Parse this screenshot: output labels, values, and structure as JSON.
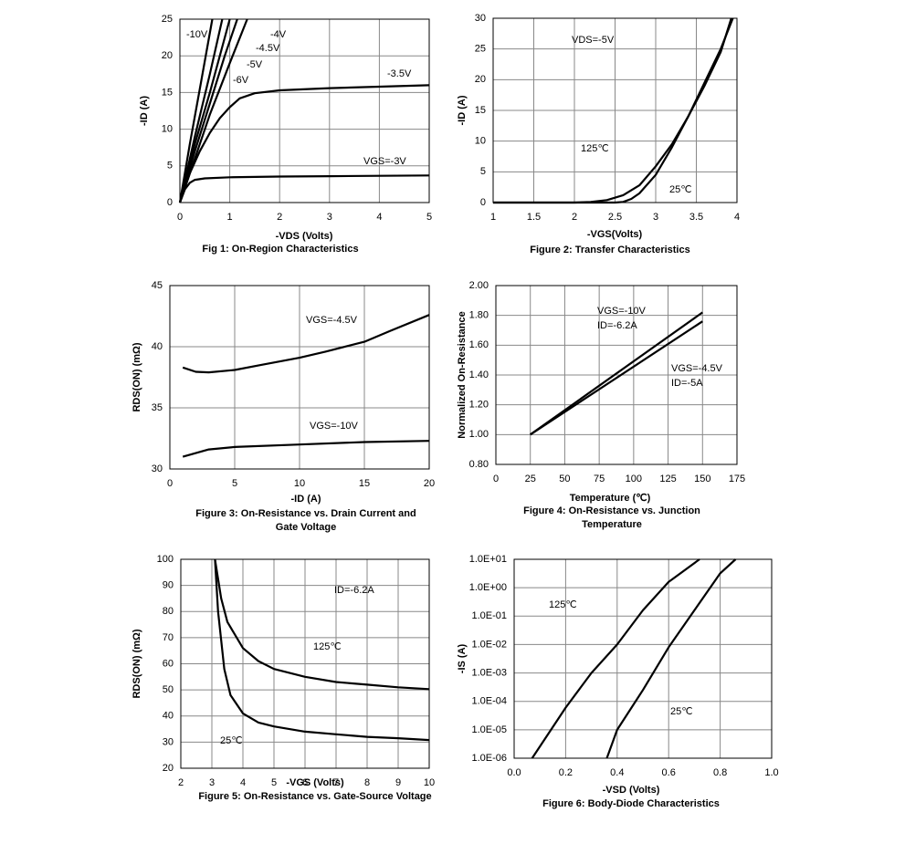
{
  "chart_data": [
    {
      "type": "line",
      "title": "Fig 1: On-Region Characteristics",
      "xlabel": "-VDS (Volts)",
      "ylabel": "-ID (A)",
      "xlim": [
        0,
        5
      ],
      "ylim": [
        0,
        25
      ],
      "xticks": [
        0,
        1,
        2,
        3,
        4,
        5
      ],
      "yticks": [
        0,
        5,
        10,
        15,
        20,
        25
      ],
      "grid": true,
      "series": [
        {
          "name": "VGS=-3V",
          "color": "#000000",
          "x": [
            0,
            0.1,
            0.2,
            0.3,
            0.5,
            1,
            2,
            3,
            4,
            5
          ],
          "values": [
            0,
            1.8,
            2.7,
            3.1,
            3.3,
            3.45,
            3.55,
            3.6,
            3.65,
            3.7
          ]
        },
        {
          "name": "-3.5V",
          "color": "#000000",
          "x": [
            0,
            0.2,
            0.4,
            0.6,
            0.8,
            1,
            1.2,
            1.5,
            2,
            3,
            4,
            5
          ],
          "values": [
            0,
            4,
            7,
            9.5,
            11.5,
            13,
            14.2,
            14.9,
            15.3,
            15.6,
            15.8,
            16
          ]
        },
        {
          "name": "-4V",
          "color": "#000000",
          "x": [
            0,
            0.3,
            0.6,
            1,
            1.35
          ],
          "values": [
            0,
            6,
            12,
            19,
            25
          ]
        },
        {
          "name": "-4.5V",
          "color": "#000000",
          "x": [
            0,
            0.3,
            0.6,
            0.9,
            1.15
          ],
          "values": [
            0,
            7,
            13.5,
            20,
            25
          ]
        },
        {
          "name": "-5V",
          "color": "#000000",
          "x": [
            0,
            0.3,
            0.6,
            1
          ],
          "values": [
            0,
            8,
            15,
            25
          ]
        },
        {
          "name": "-6V",
          "color": "#000000",
          "x": [
            0,
            0.3,
            0.6,
            0.85
          ],
          "values": [
            0,
            9,
            17.5,
            25
          ]
        },
        {
          "name": "-10V",
          "color": "#000000",
          "x": [
            0,
            0.2,
            0.4,
            0.65
          ],
          "values": [
            0,
            8,
            15.5,
            25
          ]
        }
      ]
    },
    {
      "type": "line",
      "title": "Figure 2: Transfer Characteristics",
      "xlabel": "-VGS(Volts)",
      "ylabel": "-ID (A)",
      "xlim": [
        1,
        4
      ],
      "ylim": [
        0,
        30
      ],
      "xticks": [
        1,
        1.5,
        2,
        2.5,
        3,
        3.5,
        4
      ],
      "yticks": [
        0,
        5,
        10,
        15,
        20,
        25,
        30
      ],
      "grid": true,
      "annotations": [
        "VDS=-5V"
      ],
      "series": [
        {
          "name": "125℃",
          "color": "#000000",
          "x": [
            1,
            2,
            2.2,
            2.4,
            2.6,
            2.8,
            3,
            3.2,
            3.4,
            3.6,
            3.8,
            3.93
          ],
          "values": [
            0,
            0,
            0.1,
            0.4,
            1.2,
            2.8,
            5.9,
            9.5,
            14,
            19,
            24.5,
            30
          ]
        },
        {
          "name": "25℃",
          "color": "#000000",
          "x": [
            1,
            2.5,
            2.6,
            2.7,
            2.8,
            3,
            3.2,
            3.4,
            3.6,
            3.8,
            3.95
          ],
          "values": [
            0,
            0,
            0.1,
            0.6,
            1.5,
            4.5,
            9,
            14,
            19.5,
            25,
            30
          ]
        }
      ]
    },
    {
      "type": "line",
      "title": "Figure 3: On-Resistance vs. Drain Current and Gate Voltage",
      "xlabel": "-ID (A)",
      "ylabel": "RDS(ON) (mΩ)",
      "xlim": [
        0,
        20
      ],
      "ylim": [
        30,
        45
      ],
      "xticks": [
        0,
        5,
        10,
        15,
        20
      ],
      "yticks": [
        30,
        35,
        40,
        45
      ],
      "grid": true,
      "series": [
        {
          "name": "VGS=-4.5V",
          "color": "#000000",
          "x": [
            1,
            2,
            3,
            5,
            7,
            10,
            12,
            15,
            17,
            20
          ],
          "values": [
            38.3,
            37.95,
            37.9,
            38.1,
            38.5,
            39.1,
            39.6,
            40.4,
            41.3,
            42.6
          ]
        },
        {
          "name": "VGS=-10V",
          "color": "#000000",
          "x": [
            1,
            3,
            5,
            10,
            15,
            20
          ],
          "values": [
            31,
            31.6,
            31.8,
            32,
            32.2,
            32.3
          ]
        }
      ]
    },
    {
      "type": "line",
      "title": "Figure 4: On-Resistance vs. Junction Temperature",
      "xlabel": "Temperature (℃)",
      "ylabel": "Normalized On-Resistance",
      "xlim": [
        0,
        175
      ],
      "ylim": [
        0.8,
        2.0
      ],
      "xticks": [
        0,
        25,
        50,
        75,
        100,
        125,
        150,
        175
      ],
      "yticks": [
        {
          "value": 0.8,
          "label": "0.80"
        },
        {
          "value": 1.0,
          "label": "1.00"
        },
        {
          "value": 1.2,
          "label": "1.20"
        },
        {
          "value": 1.4,
          "label": "1.40"
        },
        {
          "value": 1.6,
          "label": "1.60"
        },
        {
          "value": 1.8,
          "label": "1.80"
        },
        {
          "value": 2.0,
          "label": "2.00"
        }
      ],
      "grid": true,
      "annotations": [
        "ID=-6.2A",
        "ID=-5A"
      ],
      "series": [
        {
          "name": "VGS=-10V",
          "color": "#000000",
          "x": [
            25,
            150
          ],
          "values": [
            1.0,
            1.82
          ]
        },
        {
          "name": "VGS=-4.5V",
          "color": "#000000",
          "x": [
            25,
            150
          ],
          "values": [
            1.0,
            1.76
          ]
        }
      ]
    },
    {
      "type": "line",
      "title": "Figure 5: On-Resistance vs. Gate-Source Voltage",
      "xlabel": "-VGS (Volts)",
      "ylabel": "RDS(ON) (mΩ)",
      "xlim": [
        2,
        10
      ],
      "ylim": [
        20,
        100
      ],
      "xticks": [
        2,
        3,
        4,
        5,
        6,
        7,
        8,
        9,
        10
      ],
      "yticks": [
        20,
        30,
        40,
        50,
        60,
        70,
        80,
        90,
        100
      ],
      "grid": true,
      "annotations": [
        "ID=-6.2A"
      ],
      "series": [
        {
          "name": "125℃",
          "color": "#000000",
          "x": [
            3.1,
            3.3,
            3.5,
            4,
            4.5,
            5,
            6,
            7,
            8,
            9,
            10
          ],
          "values": [
            100,
            85,
            76,
            66,
            61,
            58,
            55,
            53,
            52,
            51,
            50.3
          ]
        },
        {
          "name": "25℃",
          "color": "#000000",
          "x": [
            3.1,
            3.2,
            3.4,
            3.6,
            4,
            4.5,
            5,
            6,
            7,
            8,
            9,
            10
          ],
          "values": [
            100,
            80,
            58,
            48,
            41,
            37.5,
            36,
            34,
            33,
            32,
            31.5,
            30.8
          ]
        }
      ]
    },
    {
      "type": "line",
      "title": "Figure 6: Body-Diode Characteristics",
      "xlabel": "-VSD (Volts)",
      "ylabel": "-IS (A)",
      "ylog": true,
      "xlim": [
        0,
        1
      ],
      "ylim": [
        1e-06,
        10
      ],
      "xticks": [
        {
          "value": 0,
          "label": "0.0"
        },
        0.2,
        0.4,
        0.6,
        0.8,
        {
          "value": 1,
          "label": "1.0"
        }
      ],
      "yticks": [
        {
          "value": 1e-06,
          "label": "1.0E-06"
        },
        {
          "value": 1e-05,
          "label": "1.0E-05"
        },
        {
          "value": 0.0001,
          "label": "1.0E-04"
        },
        {
          "value": 0.001,
          "label": "1.0E-03"
        },
        {
          "value": 0.01,
          "label": "1.0E-02"
        },
        {
          "value": 0.1,
          "label": "1.0E-01"
        },
        {
          "value": 1,
          "label": "1.0E+00"
        },
        {
          "value": 10,
          "label": "1.0E+01"
        }
      ],
      "grid": true,
      "series": [
        {
          "name": "125℃",
          "color": "#000000",
          "x": [
            0.07,
            0.2,
            0.3,
            0.4,
            0.5,
            0.6,
            0.72
          ],
          "values": [
            1e-06,
            6e-05,
            0.001,
            0.01,
            0.16,
            1.6,
            10
          ]
        },
        {
          "name": "25℃",
          "color": "#000000",
          "x": [
            0.36,
            0.4,
            0.5,
            0.6,
            0.7,
            0.8,
            0.86
          ],
          "values": [
            1e-06,
            1e-05,
            0.00025,
            0.008,
            0.16,
            3.2,
            10
          ]
        }
      ]
    }
  ]
}
